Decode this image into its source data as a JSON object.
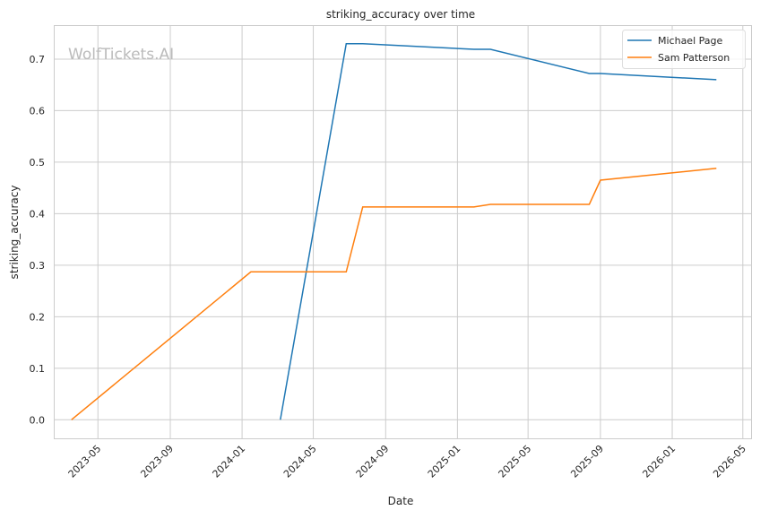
{
  "watermark": "WolfTickets.AI",
  "chart_data": {
    "type": "line",
    "title": "striking_accuracy over time",
    "xlabel": "Date",
    "ylabel": "striking_accuracy",
    "ylim": [
      -0.036,
      0.766
    ],
    "xlim": [
      "2023-02-15",
      "2026-05-15"
    ],
    "grid": true,
    "legend_placement": "top-right",
    "yticks": [
      0.0,
      0.1,
      0.2,
      0.3,
      0.4,
      0.5,
      0.6,
      0.7
    ],
    "ytick_labels": [
      "0.0",
      "0.1",
      "0.2",
      "0.3",
      "0.4",
      "0.5",
      "0.6",
      "0.7"
    ],
    "xticks": [
      "2023-05-01",
      "2023-09-01",
      "2024-01-01",
      "2024-05-01",
      "2024-09-01",
      "2025-01-01",
      "2025-05-01",
      "2025-09-01",
      "2026-01-01",
      "2026-05-01"
    ],
    "xtick_labels": [
      "2023-05",
      "2023-09",
      "2024-01",
      "2024-05",
      "2024-09",
      "2025-01",
      "2025-05",
      "2025-09",
      "2026-01",
      "2026-05"
    ],
    "series": [
      {
        "name": "Michael Page",
        "color": "#1f77b4",
        "x": [
          "2024-03-06",
          "2024-06-26",
          "2024-07-24",
          "2025-01-29",
          "2025-02-26",
          "2025-08-13",
          "2025-09-01",
          "2026-03-17"
        ],
        "y": [
          0.0,
          0.73,
          0.73,
          0.719,
          0.719,
          0.672,
          0.672,
          0.66
        ]
      },
      {
        "name": "Sam Patterson",
        "color": "#ff7f0e",
        "x": [
          "2023-03-17",
          "2024-01-16",
          "2024-06-26",
          "2024-07-24",
          "2025-01-29",
          "2025-02-26",
          "2025-08-13",
          "2025-09-01",
          "2026-03-17"
        ],
        "y": [
          0.0,
          0.287,
          0.287,
          0.413,
          0.413,
          0.418,
          0.418,
          0.465,
          0.488
        ]
      }
    ]
  }
}
